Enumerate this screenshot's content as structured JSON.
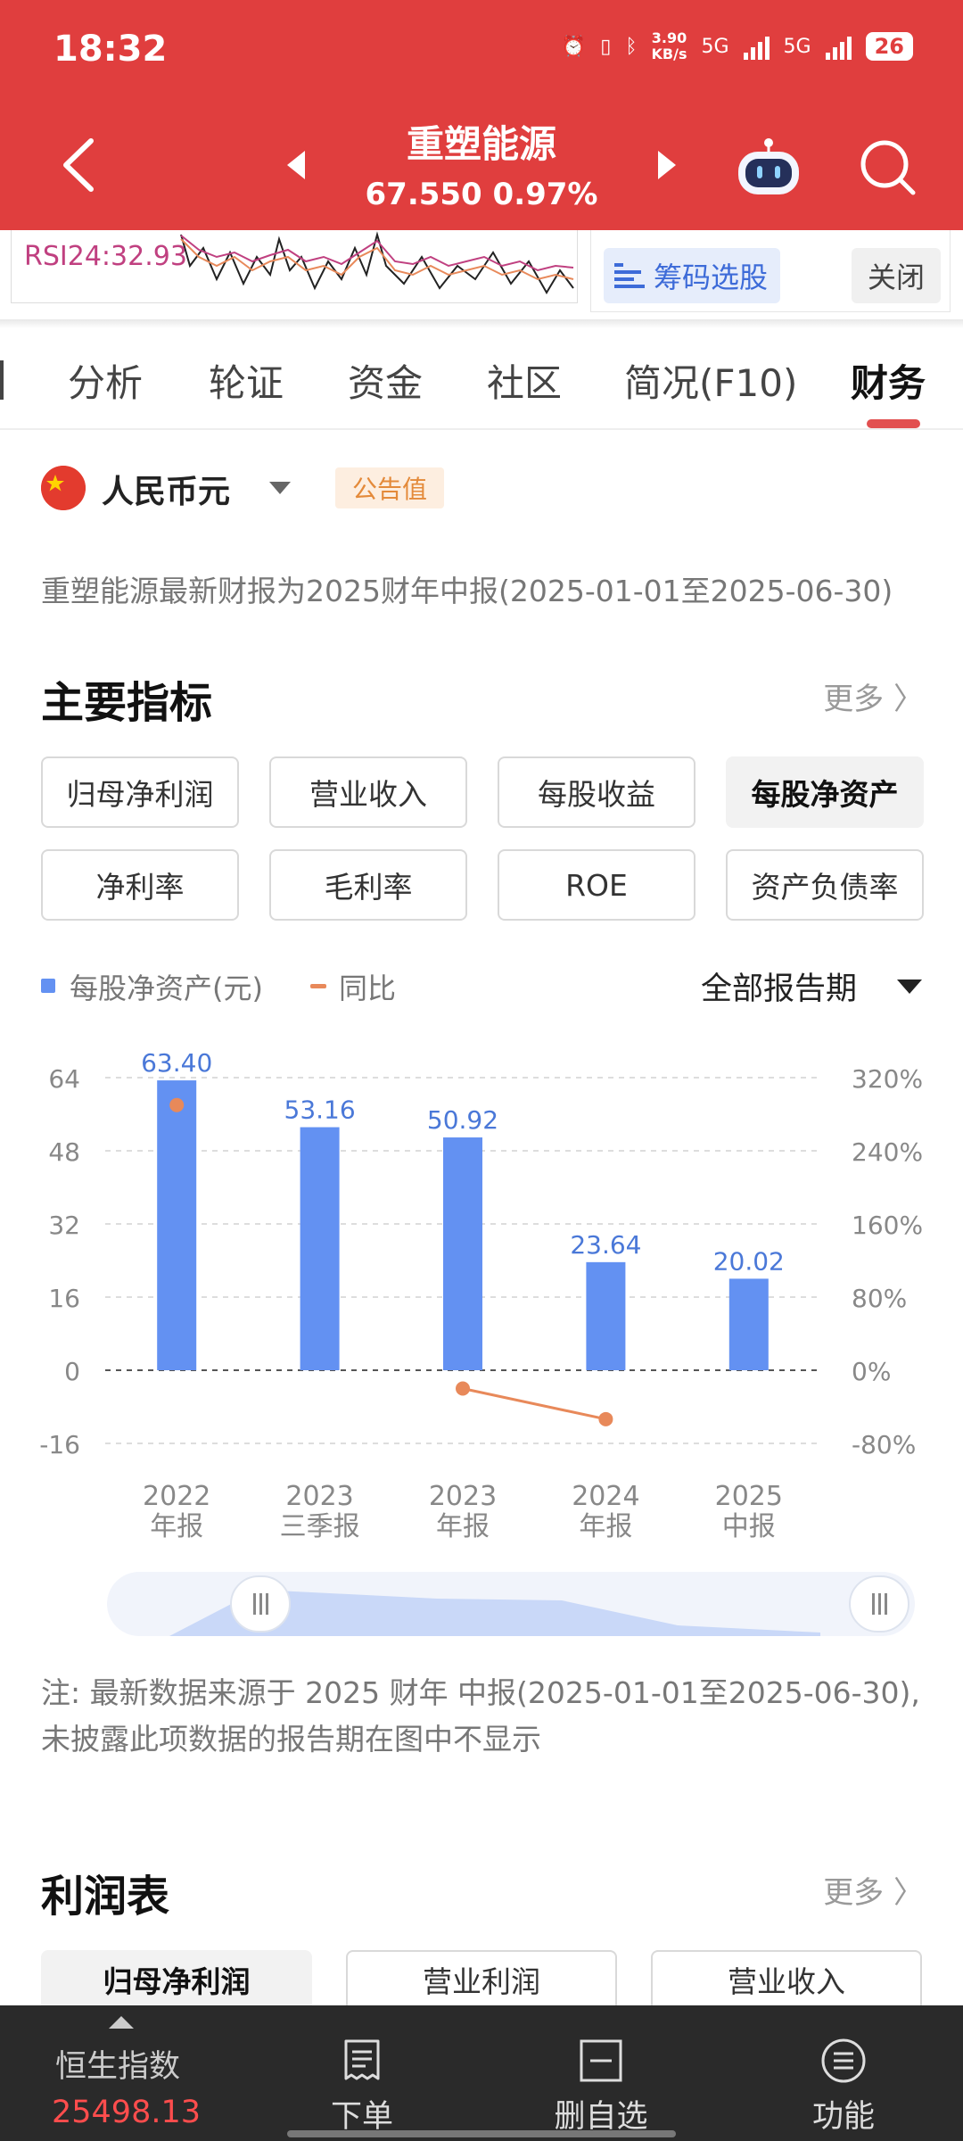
{
  "status": {
    "time": "18:32",
    "speed_value": "3.90",
    "speed_unit": "KB/s",
    "net1": "5G",
    "net2": "5G",
    "battery": "26"
  },
  "header": {
    "stock_name": "重塑能源",
    "price_line": "67.550 0.97%"
  },
  "mini": {
    "rsi_label": "RSI24:32.93",
    "chip_select": "筹码选股",
    "close": "关闭"
  },
  "tabs": [
    {
      "label": "分析"
    },
    {
      "label": "轮证"
    },
    {
      "label": "资金"
    },
    {
      "label": "社区"
    },
    {
      "label": "简况(F10)"
    },
    {
      "label": "财务"
    }
  ],
  "currency": {
    "label": "人民币元",
    "badge": "公告值"
  },
  "report_note": "重塑能源最新财报为2025财年中报(2025-01-01至2025-06-30)",
  "main_indicators": {
    "title": "主要指标",
    "more": "更多 〉",
    "buttons": [
      "归母净利润",
      "营业收入",
      "每股收益",
      "每股净资产",
      "净利率",
      "毛利率",
      "ROE",
      "资产负债率"
    ],
    "active_index": 3
  },
  "legend": {
    "bar": "每股净资产(元)",
    "line": "同比",
    "period": "全部报告期"
  },
  "chart_data": {
    "type": "bar",
    "categories": [
      "2022 年报",
      "2023 三季报",
      "2023 年报",
      "2024 年报",
      "2025 中报"
    ],
    "category_lines": [
      [
        "2022",
        "年报"
      ],
      [
        "2023",
        "三季报"
      ],
      [
        "2023",
        "年报"
      ],
      [
        "2024",
        "年报"
      ],
      [
        "2025",
        "中报"
      ]
    ],
    "series": [
      {
        "name": "每股净资产(元)",
        "type": "bar",
        "axis": "left",
        "values": [
          63.4,
          53.16,
          50.92,
          23.64,
          20.02
        ],
        "labels": [
          "63.40",
          "53.16",
          "50.92",
          "23.64",
          "20.02"
        ]
      },
      {
        "name": "同比",
        "type": "line",
        "axis": "right",
        "values": [
          290,
          null,
          -20,
          -53.5,
          null
        ]
      }
    ],
    "y_left": {
      "ticks": [
        64,
        48,
        32,
        16,
        0,
        -16
      ],
      "tick_labels": [
        "64",
        "48",
        "32",
        "16",
        "0",
        "-16"
      ],
      "range": [
        -16,
        64
      ]
    },
    "y_right": {
      "ticks": [
        320,
        240,
        160,
        80,
        0,
        -80
      ],
      "tick_labels": [
        "320%",
        "240%",
        "160%",
        "80%",
        "0%",
        "-80%"
      ],
      "range": [
        -80,
        320
      ]
    },
    "grid": true,
    "colors": {
      "bar": "#6391f2",
      "line": "#e8895a",
      "label": "#4a78d8"
    }
  },
  "chart_note": "注: 最新数据来源于 2025 财年 中报(2025-01-01至2025-06-30), 未披露此项数据的报告期在图中不显示",
  "profit": {
    "title": "利润表",
    "more": "更多 〉",
    "tabs": [
      "归母净利润",
      "营业利润",
      "营业收入"
    ],
    "active_index": 0
  },
  "bottom": {
    "index_name": "恒生指数",
    "index_value": "25498.13",
    "nav": [
      {
        "label": "下单",
        "icon": "order-icon"
      },
      {
        "label": "删自选",
        "icon": "remove-watchlist-icon"
      },
      {
        "label": "功能",
        "icon": "menu-icon"
      }
    ]
  }
}
